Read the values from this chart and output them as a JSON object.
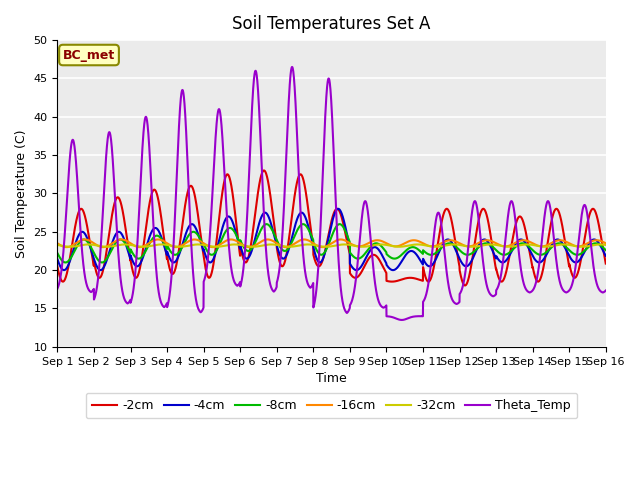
{
  "title": "Soil Temperatures Set A",
  "xlabel": "Time",
  "ylabel": "Soil Temperature (C)",
  "ylim": [
    10,
    50
  ],
  "xlim": [
    0,
    15
  ],
  "annotation": "BC_met",
  "background_color": "#ebebeb",
  "grid_color": "white",
  "xtick_labels": [
    "Sep 1",
    "Sep 2",
    "Sep 3",
    "Sep 4",
    "Sep 5",
    "Sep 6",
    "Sep 7",
    "Sep 8",
    "Sep 9",
    "Sep 10",
    "Sep 11",
    "Sep 12",
    "Sep 13",
    "Sep 14",
    "Sep 15",
    "Sep 16"
  ],
  "series": [
    {
      "label": "-2cm",
      "color": "#dd0000",
      "lw": 1.5
    },
    {
      "label": "-4cm",
      "color": "#0000cc",
      "lw": 1.5
    },
    {
      "label": "-8cm",
      "color": "#00bb00",
      "lw": 1.5
    },
    {
      "label": "-16cm",
      "color": "#ff8800",
      "lw": 1.5
    },
    {
      "label": "-32cm",
      "color": "#cccc00",
      "lw": 1.5
    },
    {
      "label": "Theta_Temp",
      "color": "#9900cc",
      "lw": 1.5
    }
  ],
  "legend_ncol": 6,
  "legend_fontsize": 9,
  "title_fontsize": 12,
  "axis_fontsize": 9,
  "tick_fontsize": 8,
  "theta_peaks": [
    37,
    38,
    40,
    43.5,
    41,
    46,
    46.5,
    45,
    29,
    13.5,
    27.5,
    29,
    29,
    29,
    28.5
  ],
  "theta_troughs": [
    17,
    15.5,
    15,
    14.3,
    17.8,
    17,
    17.5,
    14.2,
    15,
    14,
    15.5,
    16.5,
    17,
    17,
    17
  ],
  "r2_peaks": [
    28,
    29.5,
    30.5,
    31,
    32.5,
    33,
    32.5,
    28,
    22,
    19,
    28,
    28,
    27,
    28,
    28
  ],
  "r2_troughs": [
    18.5,
    19,
    19,
    19.5,
    19,
    21,
    20.5,
    20.5,
    19,
    18.5,
    18.5,
    18,
    18.5,
    18.5,
    19
  ],
  "r4_peaks": [
    25,
    25,
    25.5,
    26,
    27,
    27.5,
    27.5,
    28,
    23,
    22.5,
    24,
    24,
    24,
    24,
    24
  ],
  "r4_troughs": [
    20,
    20,
    20.5,
    21,
    21,
    21.5,
    21.5,
    21,
    20,
    20,
    20.5,
    20.5,
    21,
    21,
    21
  ],
  "r8_peaks": [
    24,
    24,
    24.5,
    25,
    25.5,
    26,
    26,
    26,
    23.5,
    23,
    23.5,
    23.5,
    23.5,
    23.5,
    23.5
  ],
  "r8_troughs": [
    21,
    21,
    21.5,
    22,
    22,
    22.5,
    22.5,
    22,
    21.5,
    21.5,
    22,
    22,
    22,
    22,
    22
  ]
}
